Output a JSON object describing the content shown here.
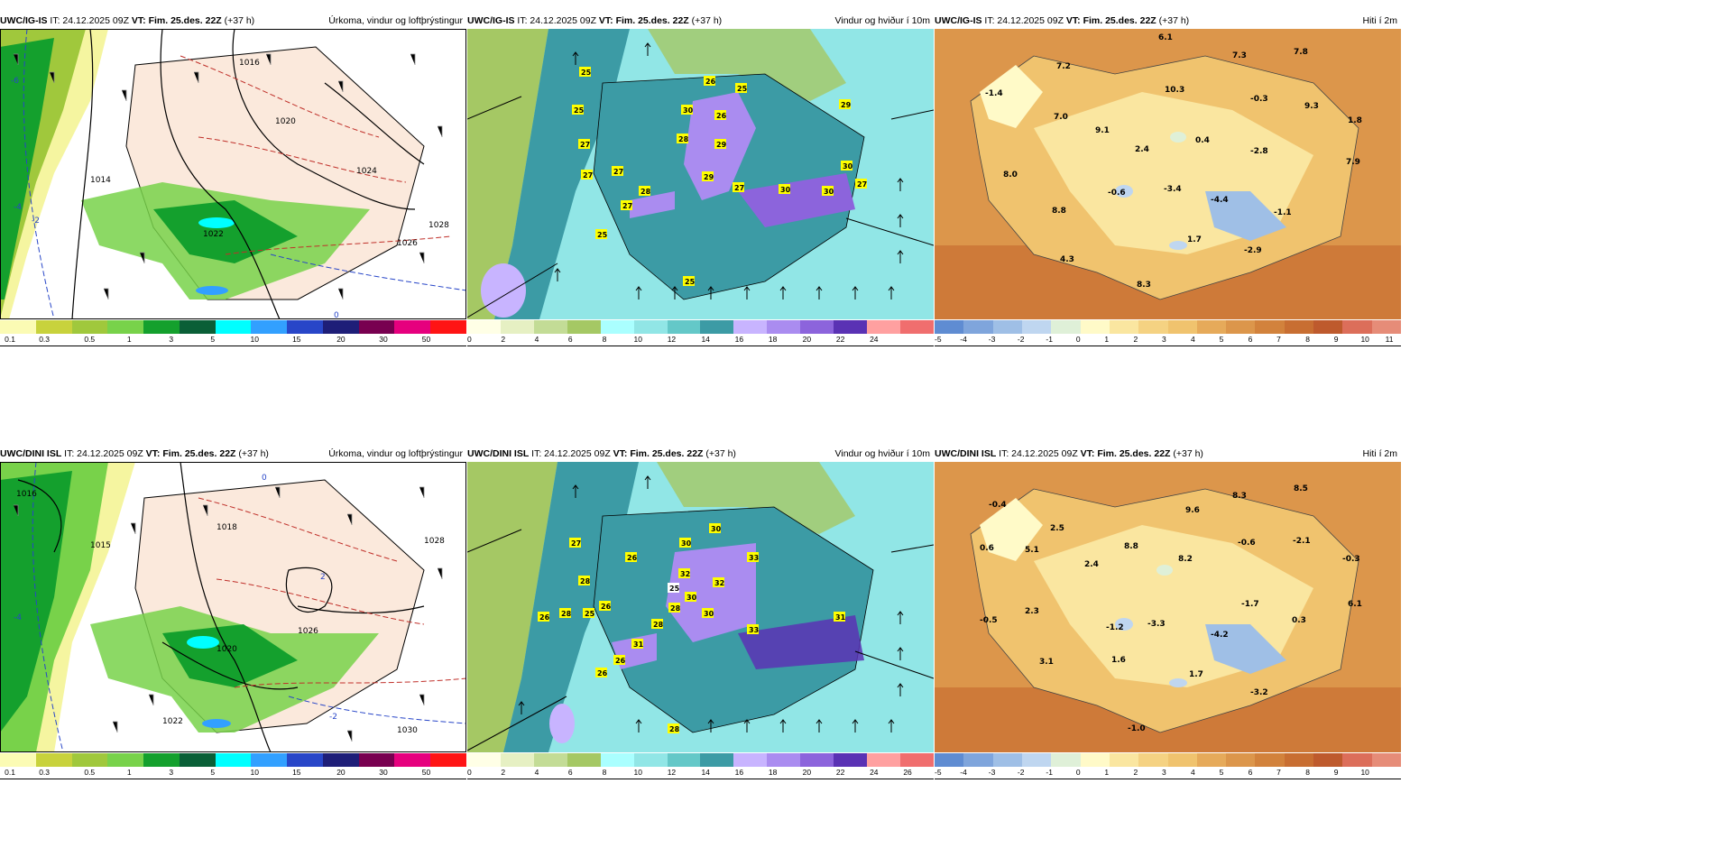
{
  "rows": [
    {
      "model": "UWC/IG-IS",
      "panels": [
        {
          "kind": "precip",
          "header_src": "UWC/IG-IS",
          "header_it": " IT: 24.12.2025 09Z ",
          "header_vt": "VT: Fim. 25.des. 22Z",
          "header_lead": " (+37 h)",
          "title": "Úrkoma, vindur og loftþrýstingur",
          "pressure_labels": [
            "1014",
            "1016",
            "1020",
            "1022",
            "1024",
            "1026",
            "1028"
          ],
          "temp_line_labels": [
            "-6",
            "-4",
            "-2",
            "0"
          ]
        },
        {
          "kind": "wind",
          "header_src": "UWC/IG-IS",
          "header_it": " IT: 24.12.2025 09Z ",
          "header_vt": "VT: Fim. 25.des. 22Z",
          "header_lead": " (+37 h)",
          "title": "Vindur og hviður í 10m",
          "gust_labels": [
            "25",
            "25",
            "26",
            "25",
            "27",
            "27",
            "27",
            "28",
            "27",
            "25",
            "30",
            "28",
            "26",
            "29",
            "29",
            "27",
            "30",
            "30",
            "30",
            "27",
            "29",
            "25"
          ]
        },
        {
          "kind": "temp",
          "header_src": "UWC/IG-IS",
          "header_it": " IT: 24.12.2025 09Z ",
          "header_vt": "VT: Fim. 25.des. 22Z",
          "header_lead": " (+37 h)",
          "title": "Hiti í 2m",
          "temp_labels": [
            "6.1",
            "7.2",
            "7.3",
            "7.8",
            "-1.4",
            "10.3",
            "-0.3",
            "7.0",
            "9.3",
            "1.8",
            "9.1",
            "0.4",
            "2.4",
            "-2.8",
            "7.9",
            "8.0",
            "-0.6",
            "-3.4",
            "-4.4",
            "-1.1",
            "8.8",
            "1.7",
            "-2.9",
            "4.3",
            "8.3"
          ]
        }
      ]
    },
    {
      "model": "UWC/DINI ISL",
      "panels": [
        {
          "kind": "precip",
          "header_src": "UWC/DINI ISL",
          "header_it": " IT: 24.12.2025 09Z ",
          "header_vt": "VT: Fim. 25.des. 22Z",
          "header_lead": " (+37 h)",
          "title": "Úrkoma, vindur og loftþrýstingur",
          "pressure_labels": [
            "1015",
            "1016",
            "1018",
            "1020",
            "1022",
            "1026",
            "1028",
            "1030"
          ],
          "temp_line_labels": [
            "-4",
            "-2",
            "0",
            "2"
          ]
        },
        {
          "kind": "wind",
          "header_src": "UWC/DINI ISL",
          "header_it": " IT: 24.12.2025 09Z ",
          "header_vt": "VT: Fim. 25.des. 22Z",
          "header_lead": " (+37 h)",
          "title": "Vindur og hviður í 10m",
          "gust_labels": [
            "30",
            "27",
            "26",
            "30",
            "33",
            "28",
            "32",
            "32",
            "26",
            "28",
            "25",
            "26",
            "25",
            "28",
            "30",
            "28",
            "30",
            "33",
            "31",
            "31",
            "26",
            "26",
            "28"
          ]
        },
        {
          "kind": "temp",
          "header_src": "UWC/DINI ISL",
          "header_it": " IT: 24.12.2025 09Z ",
          "header_vt": "VT: Fim. 25.des. 22Z",
          "header_lead": " (+37 h)",
          "title": "Hiti í 2m",
          "temp_labels": [
            "9.6",
            "8.3",
            "8.5",
            "-0.4",
            "2.5",
            "0.6",
            "5.1",
            "8.8",
            "8.2",
            "-0.6",
            "-2.1",
            "-0.3",
            "2.4",
            "-1.7",
            "6.1",
            "-0.5",
            "2.3",
            "-1.2",
            "-3.3",
            "-4.2",
            "0.3",
            "3.1",
            "1.6",
            "1.7",
            "-3.2",
            "-1.0"
          ]
        }
      ]
    }
  ],
  "legends": {
    "precip": {
      "colors": [
        "#fbfbb4",
        "#c8d23c",
        "#a0c83c",
        "#78d24a",
        "#14a02d",
        "#0a5f37",
        "#00ffff",
        "#32a0ff",
        "#2846c8",
        "#1e1e78",
        "#780050",
        "#e6007e",
        "#ff1414"
      ],
      "ticks": [
        "0.1",
        "0.3",
        "0.5",
        "1",
        "3",
        "5",
        "10",
        "15",
        "20",
        "30",
        "50"
      ]
    },
    "wind": {
      "colors": [
        "#ffffe6",
        "#e6f0c3",
        "#c3dc96",
        "#a5c864",
        "#aaffff",
        "#91e6e6",
        "#64c8c8",
        "#3c9ba5",
        "#c8b4ff",
        "#aa8cf0",
        "#8c64dc",
        "#5a32b4",
        "#ffa0a0",
        "#f06e6e"
      ],
      "ticks": [
        "0",
        "2",
        "4",
        "6",
        "8",
        "10",
        "12",
        "14",
        "16",
        "18",
        "20",
        "22",
        "24",
        "26"
      ]
    },
    "temp_top": {
      "colors": [
        "#5f8cd2",
        "#7fa5dc",
        "#9fbfe6",
        "#bfd6f0",
        "#dff0d8",
        "#fffac8",
        "#fae6a0",
        "#f5d282",
        "#f0c36e",
        "#e6aa5a",
        "#dc964b",
        "#d2823c",
        "#c86e32",
        "#be5a2d",
        "#dc6e5a",
        "#e68c78"
      ],
      "ticks": [
        "-5",
        "-4",
        "-3",
        "-2",
        "-1",
        "0",
        "1",
        "2",
        "3",
        "4",
        "5",
        "6",
        "7",
        "8",
        "9",
        "10",
        "11"
      ]
    },
    "temp_bottom": {
      "colors": [
        "#5f8cd2",
        "#7fa5dc",
        "#9fbfe6",
        "#bfd6f0",
        "#dff0d8",
        "#fffac8",
        "#fae6a0",
        "#f5d282",
        "#f0c36e",
        "#e6aa5a",
        "#dc964b",
        "#d2823c",
        "#c86e32",
        "#be5a2d",
        "#dc6e5a",
        "#e68c78"
      ],
      "ticks": [
        "-5",
        "-4",
        "-3",
        "-2",
        "-1",
        "0",
        "1",
        "2",
        "3",
        "4",
        "5",
        "6",
        "7",
        "8",
        "9",
        "10"
      ]
    }
  }
}
